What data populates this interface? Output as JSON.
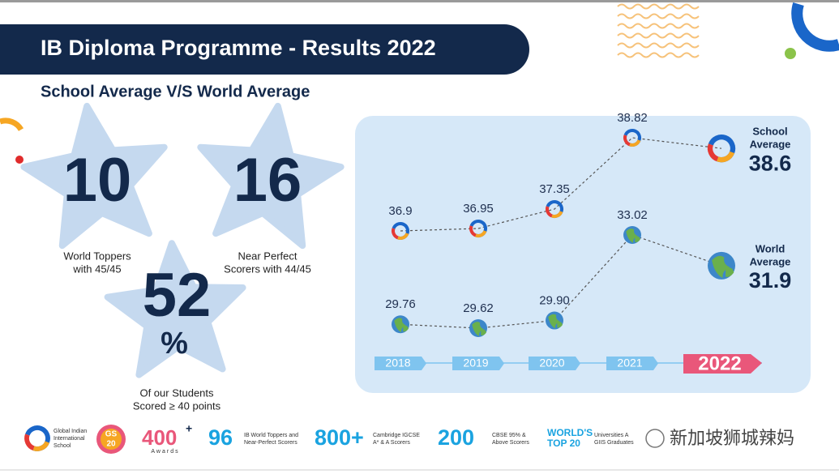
{
  "header": {
    "title": "IB Diploma Programme - Results 2022",
    "subtitle": "School Average V/S World Average"
  },
  "stats": [
    {
      "number": "10",
      "caption": [
        "World Toppers",
        "with 45/45"
      ]
    },
    {
      "number": "16",
      "caption": [
        "Near Perfect",
        "Scorers with 44/45"
      ]
    },
    {
      "number": "52",
      "unit": "%",
      "caption": [
        "Of our Students",
        "Scored ≥ 40 points"
      ]
    }
  ],
  "chart_data": {
    "type": "line",
    "categories": [
      "2018",
      "2019",
      "2020",
      "2021",
      "2022"
    ],
    "series": [
      {
        "name": "School Average",
        "color": "#555555",
        "values": [
          36.9,
          36.95,
          37.35,
          38.82,
          38.6
        ]
      },
      {
        "name": "World Average",
        "color": "#555555",
        "values": [
          29.76,
          29.62,
          29.9,
          33.02,
          31.9
        ],
        "value_labels": [
          "29.76",
          "29.62",
          "29.90",
          "33.02",
          "31.9"
        ]
      }
    ]
  },
  "footer": {
    "school_name": [
      "Global Indian",
      "International",
      "School"
    ],
    "badge": [
      "GS",
      "20"
    ],
    "awards": {
      "number": "400",
      "sup": "+",
      "label": "Awards"
    },
    "items": [
      {
        "number": "96",
        "label": [
          "IB World Toppers and",
          "Near-Perfect Scorers"
        ]
      },
      {
        "number": "800+",
        "label": [
          "Cambridge IGCSE",
          "A* & A Scorers"
        ]
      },
      {
        "number": "200",
        "label": [
          "CBSE 95% &",
          "Above Scorers"
        ]
      },
      {
        "number": [
          "WORLD'S",
          "TOP 20"
        ],
        "label": [
          "Universities A",
          "GIIS Graduates"
        ]
      }
    ],
    "watermark": "新加坡狮城辣妈"
  }
}
